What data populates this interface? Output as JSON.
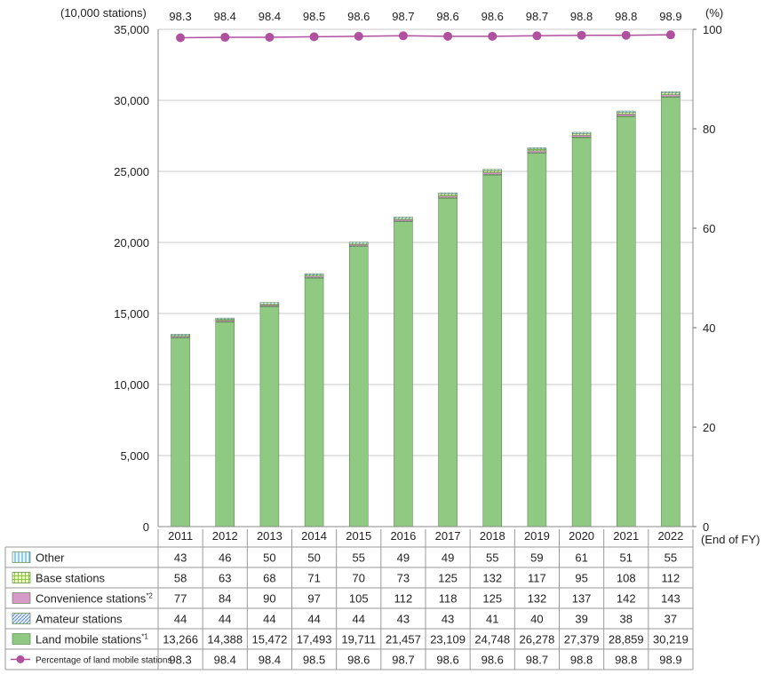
{
  "chart_data": {
    "type": "bar",
    "stacked": true,
    "categories": [
      "2011",
      "2012",
      "2013",
      "2014",
      "2015",
      "2016",
      "2017",
      "2018",
      "2019",
      "2020",
      "2021",
      "2022"
    ],
    "series": [
      {
        "name": "Land mobile stations",
        "name_sup": "*1",
        "color": "#90c981",
        "values": [
          13266,
          14388,
          15472,
          17493,
          19711,
          21457,
          23109,
          24748,
          26278,
          27379,
          28859,
          30219
        ],
        "labels": [
          "13,266",
          "14,388",
          "15,472",
          "17,493",
          "19,711",
          "21,457",
          "23,109",
          "24,748",
          "26,278",
          "27,379",
          "28,859",
          "30,219"
        ]
      },
      {
        "name": "Amateur stations",
        "name_sup": "",
        "color": "#c8d8ef",
        "values": [
          44,
          44,
          44,
          44,
          44,
          43,
          43,
          41,
          40,
          39,
          38,
          37
        ],
        "labels": [
          "44",
          "44",
          "44",
          "44",
          "44",
          "43",
          "43",
          "41",
          "40",
          "39",
          "38",
          "37"
        ]
      },
      {
        "name": "Convenience stations",
        "name_sup": "*2",
        "color": "#d79ac8",
        "values": [
          77,
          84,
          90,
          97,
          105,
          112,
          118,
          125,
          132,
          137,
          142,
          143
        ],
        "labels": [
          "77",
          "84",
          "90",
          "97",
          "105",
          "112",
          "118",
          "125",
          "132",
          "137",
          "142",
          "143"
        ]
      },
      {
        "name": "Base stations",
        "name_sup": "",
        "color": "#d5ec9c",
        "values": [
          58,
          63,
          68,
          71,
          70,
          73,
          125,
          132,
          117,
          95,
          108,
          112
        ],
        "labels": [
          "58",
          "63",
          "68",
          "71",
          "70",
          "73",
          "125",
          "132",
          "117",
          "95",
          "108",
          "112"
        ]
      },
      {
        "name": "Other",
        "name_sup": "",
        "color": "#a8dcef",
        "values": [
          43,
          46,
          50,
          50,
          55,
          49,
          49,
          55,
          59,
          61,
          51,
          55
        ],
        "labels": [
          "43",
          "46",
          "50",
          "50",
          "55",
          "49",
          "49",
          "55",
          "59",
          "61",
          "51",
          "55"
        ]
      }
    ],
    "line_series": {
      "name": "Percentage of land mobile stations",
      "color": "#b0509f",
      "values": [
        98.3,
        98.4,
        98.4,
        98.5,
        98.6,
        98.7,
        98.6,
        98.6,
        98.7,
        98.8,
        98.8,
        98.9
      ],
      "labels": [
        "98.3",
        "98.4",
        "98.4",
        "98.5",
        "98.6",
        "98.7",
        "98.6",
        "98.6",
        "98.7",
        "98.8",
        "98.8",
        "98.9"
      ]
    },
    "ylabel": "(10,000 stations)",
    "y2label": "(%)",
    "xlabel": "(End of FY)",
    "ylim": [
      0,
      35000
    ],
    "yticks": [
      0,
      5000,
      10000,
      15000,
      20000,
      25000,
      30000,
      35000
    ],
    "ytick_labels": [
      "0",
      "5,000",
      "10,000",
      "15,000",
      "20,000",
      "25,000",
      "30,000",
      "35,000"
    ],
    "y2lim": [
      0,
      100
    ],
    "y2ticks": [
      0,
      20,
      40,
      60,
      80,
      100
    ],
    "y2tick_labels": [
      "0",
      "20",
      "40",
      "60",
      "80",
      "100"
    ],
    "grid": true,
    "table_order": [
      "Other",
      "Base stations",
      "Convenience stations",
      "Amateur stations",
      "Land mobile stations",
      "Percentage of land mobile stations"
    ]
  }
}
